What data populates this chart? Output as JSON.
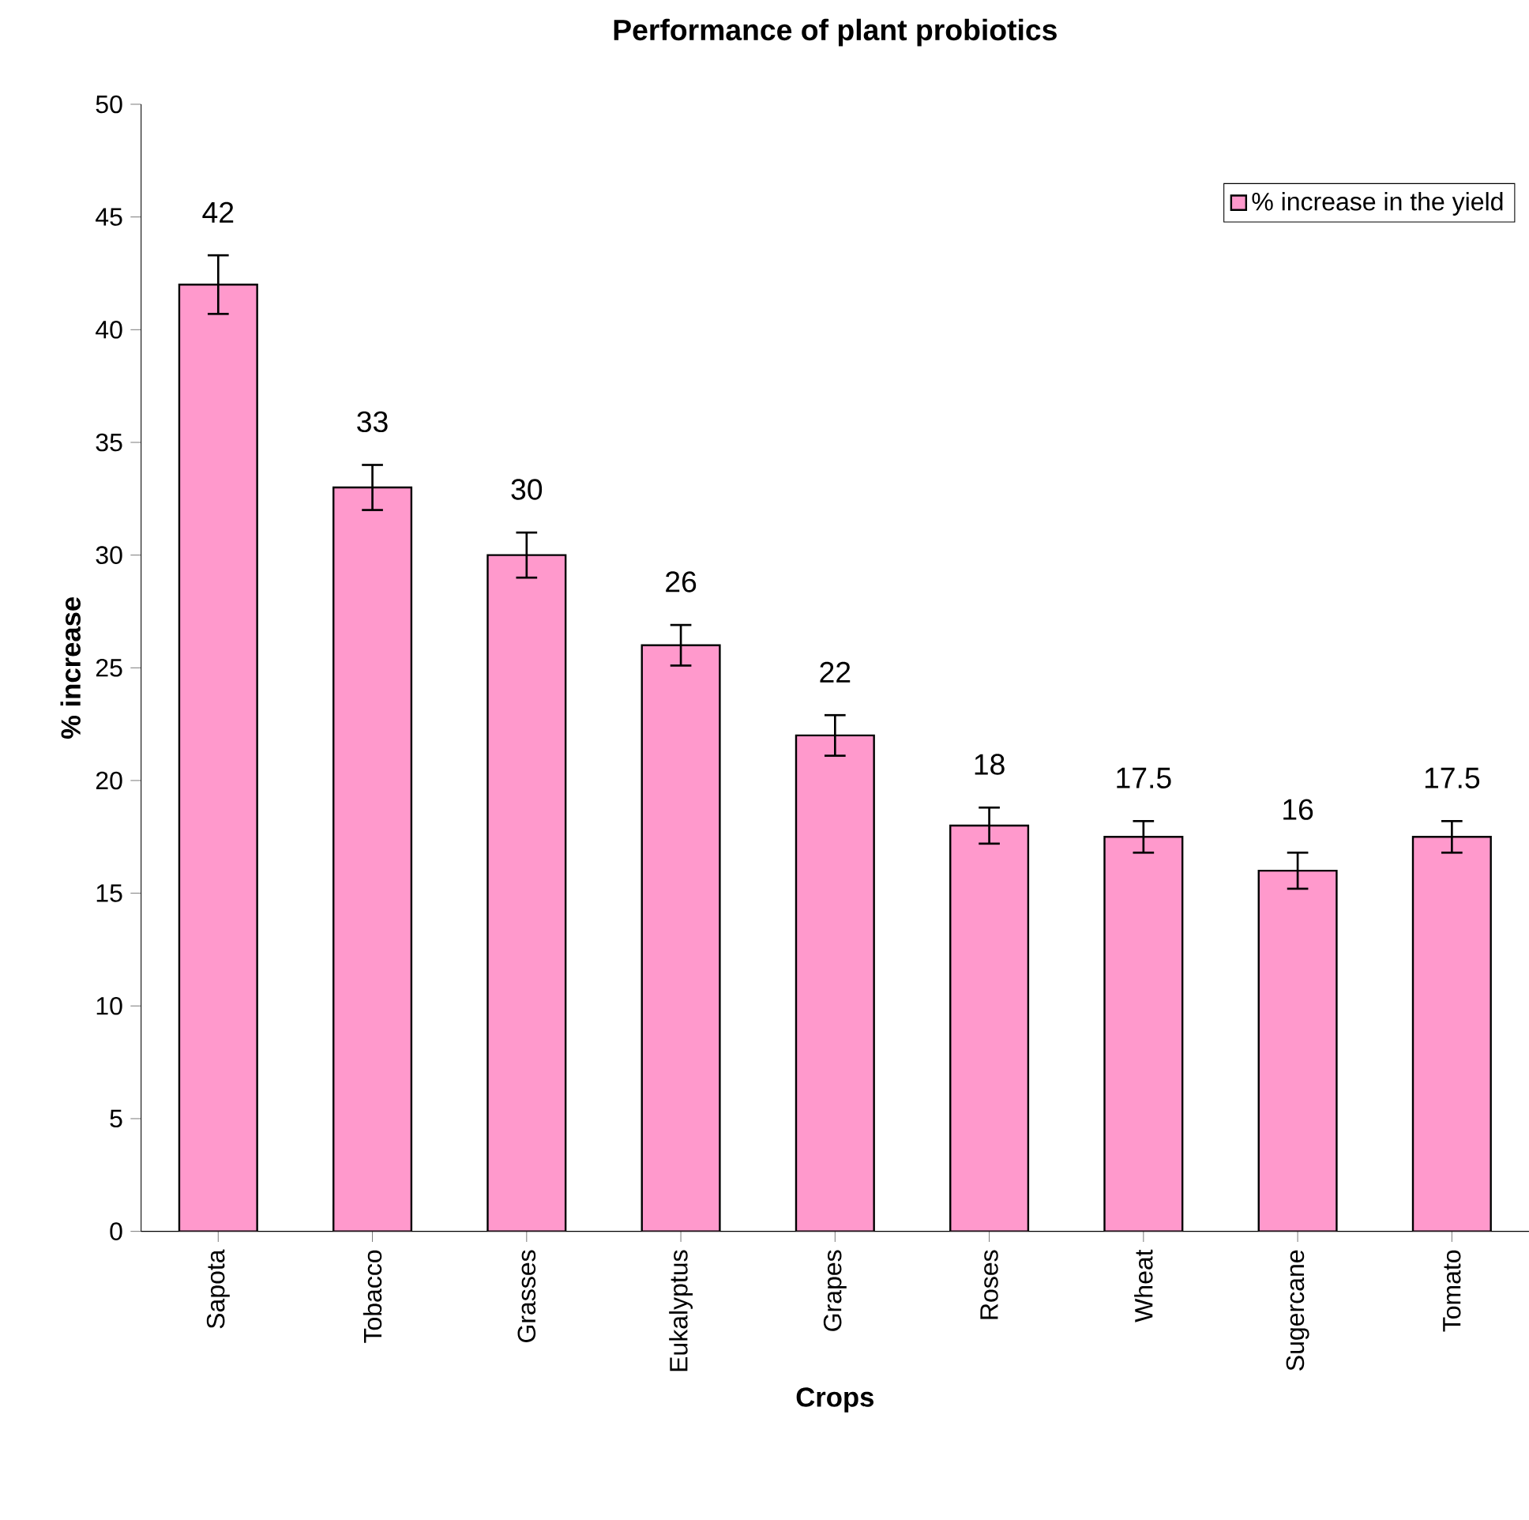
{
  "chart_data": {
    "type": "bar",
    "title": "Performance of plant probiotics",
    "xlabel": "Crops",
    "ylabel": "% increase",
    "categories": [
      "Sapota",
      "Tobacco",
      "Grasses",
      "Eukalyptus",
      "Grapes",
      "Roses",
      "Wheat",
      "Sugercane",
      "Tomato"
    ],
    "series": [
      {
        "name": "% increase in the yield",
        "color": "#ff99cc",
        "values": [
          42,
          33,
          30,
          26,
          22,
          18,
          17.5,
          16,
          17.5
        ],
        "errors": [
          1.3,
          1,
          1,
          0.9,
          0.9,
          0.8,
          0.7,
          0.8,
          0.7
        ]
      }
    ],
    "ylim": [
      0,
      50
    ],
    "yticks": [
      0,
      5,
      10,
      15,
      20,
      25,
      30,
      35,
      40,
      45,
      50
    ],
    "data_labels": true,
    "legend": "top right",
    "grid": false
  }
}
